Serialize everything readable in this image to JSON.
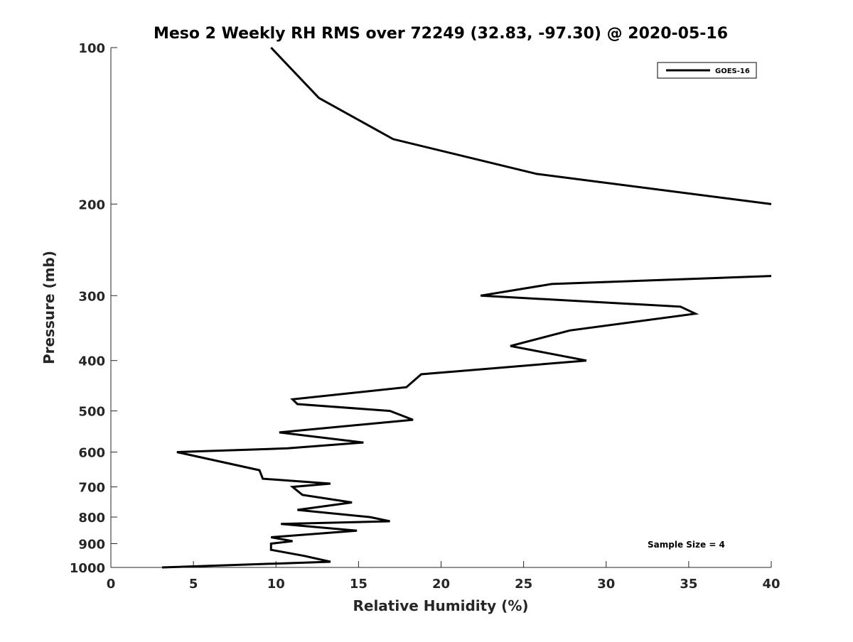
{
  "chart_data": {
    "type": "line",
    "title": "Meso 2 Weekly RH RMS over 72249 (32.83, -97.30) @ 2020-05-16",
    "xlabel": "Relative Humidity (%)",
    "ylabel": "Pressure (mb)",
    "xlim": [
      0,
      40
    ],
    "ylim": [
      100,
      1000
    ],
    "y_scale": "log",
    "y_reversed": true,
    "grid": false,
    "legend_position": "top-right",
    "x_ticks": [
      "0",
      "5",
      "10",
      "15",
      "20",
      "25",
      "30",
      "35",
      "40"
    ],
    "y_ticks": [
      "100",
      "200",
      "300",
      "400",
      "500",
      "600",
      "700",
      "800",
      "900",
      "1000"
    ],
    "annotation": "Sample Size = 4",
    "series": [
      {
        "name": "GOES-16",
        "color": "#000000",
        "segments": [
          [
            {
              "x": 9.7,
              "y": 100
            },
            {
              "x": 12.6,
              "y": 125
            },
            {
              "x": 17.1,
              "y": 150
            },
            {
              "x": 25.8,
              "y": 175
            },
            {
              "x": 40.0,
              "y": 200
            }
          ],
          [
            {
              "x": 40.0,
              "y": 275
            },
            {
              "x": 26.7,
              "y": 285
            },
            {
              "x": 22.4,
              "y": 300
            },
            {
              "x": 34.5,
              "y": 315
            },
            {
              "x": 35.4,
              "y": 325
            },
            {
              "x": 27.8,
              "y": 350
            },
            {
              "x": 24.2,
              "y": 375
            },
            {
              "x": 28.8,
              "y": 400
            },
            {
              "x": 18.8,
              "y": 425
            },
            {
              "x": 17.9,
              "y": 450
            },
            {
              "x": 11.0,
              "y": 475
            },
            {
              "x": 11.3,
              "y": 485
            },
            {
              "x": 16.9,
              "y": 500
            },
            {
              "x": 18.3,
              "y": 520
            },
            {
              "x": 10.2,
              "y": 550
            },
            {
              "x": 15.3,
              "y": 575
            },
            {
              "x": 10.7,
              "y": 590
            },
            {
              "x": 4.0,
              "y": 600
            },
            {
              "x": 9.0,
              "y": 650
            },
            {
              "x": 9.2,
              "y": 675
            },
            {
              "x": 13.3,
              "y": 690
            },
            {
              "x": 11.0,
              "y": 700
            },
            {
              "x": 11.6,
              "y": 725
            },
            {
              "x": 14.6,
              "y": 750
            },
            {
              "x": 11.3,
              "y": 775
            },
            {
              "x": 15.7,
              "y": 800
            },
            {
              "x": 16.9,
              "y": 815
            },
            {
              "x": 10.3,
              "y": 825
            },
            {
              "x": 14.9,
              "y": 850
            },
            {
              "x": 9.7,
              "y": 875
            },
            {
              "x": 11.0,
              "y": 890
            },
            {
              "x": 9.7,
              "y": 900
            },
            {
              "x": 9.7,
              "y": 925
            },
            {
              "x": 11.7,
              "y": 950
            },
            {
              "x": 13.3,
              "y": 975
            },
            {
              "x": 3.1,
              "y": 1000
            }
          ]
        ]
      }
    ]
  }
}
